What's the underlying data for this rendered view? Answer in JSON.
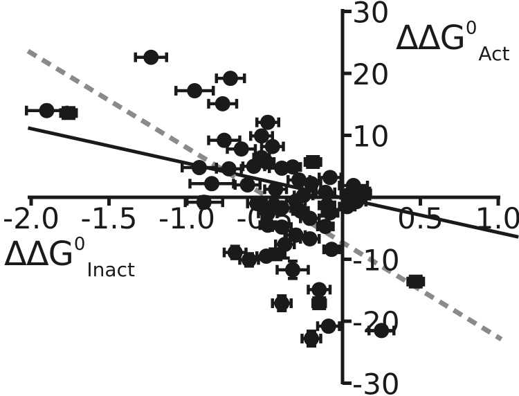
{
  "figure": {
    "background": "#ffffff",
    "ink_color": "#1a1a1a",
    "y_axis_title": {
      "main": "ΔΔG",
      "sup": "0",
      "sub": "Act"
    },
    "x_axis_title": {
      "main": "ΔΔG",
      "sup": "0",
      "sub": "Inact"
    }
  },
  "chart_data": {
    "type": "scatter",
    "title": "",
    "xlabel": "ΔΔG0 Inact",
    "ylabel": "ΔΔG0 Act",
    "xlim": [
      -2.0,
      1.0
    ],
    "ylim": [
      -30,
      30
    ],
    "grid": false,
    "legend": null,
    "marker_color": "#1a1a1a",
    "x_ticks": [
      {
        "v": -2.0,
        "label": "-2.0"
      },
      {
        "v": -1.5,
        "label": "-1.5"
      },
      {
        "v": -1.0,
        "label": "-1.0"
      },
      {
        "v": -0.5,
        "label": "-0.5"
      },
      {
        "v": 0.5,
        "label": "0.5"
      },
      {
        "v": 1.0,
        "label": "1.0"
      }
    ],
    "y_ticks": [
      {
        "v": 30,
        "label": "30"
      },
      {
        "v": 20,
        "label": "20"
      },
      {
        "v": 10,
        "label": "10"
      },
      {
        "v": -10,
        "label": "-10"
      },
      {
        "v": -20,
        "label": "-20"
      },
      {
        "v": -30,
        "label": "-30"
      }
    ],
    "fit_lines": [
      {
        "name": "solid-regression-line",
        "style": "solid",
        "color": "#1a1a1a",
        "x1": -2.02,
        "y1": 11.2,
        "x2": 1.13,
        "y2": -6.4
      },
      {
        "name": "dashed-regression-line",
        "style": "dashed",
        "color": "#8a8a8a",
        "x1": -2.02,
        "y1": 23.6,
        "x2": 1.02,
        "y2": -22.9
      }
    ],
    "points": [
      {
        "x": -1.23,
        "y": 22.6,
        "ex": 0.1,
        "ey": 0
      },
      {
        "x": -1.9,
        "y": 14.0,
        "ex": 0.13,
        "ey": 0
      },
      {
        "x": -1.76,
        "y": 13.6,
        "ex": 0.05,
        "ey": 0,
        "shape": "s"
      },
      {
        "x": -0.95,
        "y": 17.2,
        "ex": 0.12,
        "ey": 0
      },
      {
        "x": -0.72,
        "y": 19.2,
        "ex": 0.09,
        "ey": 0
      },
      {
        "x": -0.77,
        "y": 15.1,
        "ex": 0.09,
        "ey": 0
      },
      {
        "x": -0.48,
        "y": 12.1,
        "ex": 0.07,
        "ey": 0
      },
      {
        "x": -0.52,
        "y": 9.9,
        "ex": 0.07,
        "ey": 0
      },
      {
        "x": -0.45,
        "y": 8.2,
        "ex": 0.07,
        "ey": 0
      },
      {
        "x": -0.76,
        "y": 9.2,
        "ex": 0.1,
        "ey": 0
      },
      {
        "x": -0.65,
        "y": 7.8,
        "ex": 0.09,
        "ey": 0
      },
      {
        "x": -0.52,
        "y": 6.4,
        "ex": 0.05,
        "ey": 0
      },
      {
        "x": -0.92,
        "y": 4.8,
        "ex": 0.11,
        "ey": 0
      },
      {
        "x": -0.73,
        "y": 4.6,
        "ex": 0.08,
        "ey": 0
      },
      {
        "x": -0.57,
        "y": 5.0,
        "ex": 0.07,
        "ey": 0
      },
      {
        "x": -0.49,
        "y": 5.7,
        "ex": 0.05,
        "ey": 0
      },
      {
        "x": -0.39,
        "y": 4.7,
        "ex": 0.08,
        "ey": 0
      },
      {
        "x": -0.32,
        "y": 4.9,
        "ex": 0.05,
        "ey": 0
      },
      {
        "x": -0.19,
        "y": 5.7,
        "ex": 0.05,
        "ey": 0.6,
        "shape": "s"
      },
      {
        "x": -0.84,
        "y": 2.2,
        "ex": 0.14,
        "ey": 0
      },
      {
        "x": -0.61,
        "y": 2.0,
        "ex": 0.08,
        "ey": 0
      },
      {
        "x": -0.43,
        "y": 1.3,
        "ex": 0.07,
        "ey": 0
      },
      {
        "x": -0.28,
        "y": 2.8,
        "ex": 0.07,
        "ey": 0
      },
      {
        "x": -0.2,
        "y": 2.2,
        "ex": 0.06,
        "ey": 0
      },
      {
        "x": -0.08,
        "y": 3.2,
        "ex": 0.07,
        "ey": 0
      },
      {
        "x": 0.07,
        "y": 1.9,
        "ex": 0.09,
        "ey": 0
      },
      {
        "x": -0.11,
        "y": 0.8,
        "ex": 0.06,
        "ey": 0
      },
      {
        "x": -0.25,
        "y": 0.3,
        "ex": 0.06,
        "ey": 0
      },
      {
        "x": 0.04,
        "y": 0.4,
        "ex": 0.05,
        "ey": 0
      },
      {
        "x": 0.14,
        "y": 0.6,
        "ex": 0.04,
        "ey": 0.5,
        "shape": "s"
      },
      {
        "x": -0.89,
        "y": -0.8,
        "ex": 0.12,
        "ey": 0.9
      },
      {
        "x": -0.55,
        "y": -1.0,
        "ex": 0.06,
        "ey": 0
      },
      {
        "x": -0.44,
        "y": -1.3,
        "ex": 0.06,
        "ey": 0
      },
      {
        "x": -0.3,
        "y": -0.6,
        "ex": 0.06,
        "ey": 0
      },
      {
        "x": -0.48,
        "y": -2.6,
        "ex": 0.06,
        "ey": 0
      },
      {
        "x": -0.39,
        "y": -1.7,
        "ex": 0.06,
        "ey": 0
      },
      {
        "x": -0.1,
        "y": -1.3,
        "ex": 0.05,
        "ey": 0
      },
      {
        "x": 0.03,
        "y": -1.5,
        "ex": 0.05,
        "ey": 0
      },
      {
        "x": 0.09,
        "y": -0.7,
        "ex": 0.06,
        "ey": 0
      },
      {
        "x": -0.27,
        "y": -2.2,
        "ex": 0.05,
        "ey": 0
      },
      {
        "x": -0.08,
        "y": -2.5,
        "ex": 0.05,
        "ey": 0
      },
      {
        "x": -0.21,
        "y": -3.4,
        "ex": 0.06,
        "ey": 0
      },
      {
        "x": -0.48,
        "y": -4.5,
        "ex": 0.05,
        "ey": 0.7
      },
      {
        "x": -0.39,
        "y": -4.8,
        "ex": 0.06,
        "ey": 0
      },
      {
        "x": -0.11,
        "y": -4.7,
        "ex": 0.05,
        "ey": 0
      },
      {
        "x": -0.3,
        "y": -6.1,
        "ex": 0.06,
        "ey": 0.8
      },
      {
        "x": -0.21,
        "y": -6.7,
        "ex": 0.06,
        "ey": 0
      },
      {
        "x": -0.37,
        "y": -7.6,
        "ex": 0.06,
        "ey": 2.2
      },
      {
        "x": -0.07,
        "y": -8.4,
        "ex": 0.05,
        "ey": 0
      },
      {
        "x": -0.69,
        "y": -8.9,
        "ex": 0.07,
        "ey": 1.0
      },
      {
        "x": -0.6,
        "y": -10.1,
        "ex": 0.06,
        "ey": 1.0
      },
      {
        "x": -0.49,
        "y": -9.5,
        "ex": 0.06,
        "ey": 0
      },
      {
        "x": -0.43,
        "y": -9.2,
        "ex": 0.04,
        "ey": 0,
        "shape": "s"
      },
      {
        "x": -0.32,
        "y": -11.7,
        "ex": 0.1,
        "ey": 1.4
      },
      {
        "x": -0.15,
        "y": -14.9,
        "ex": 0.07,
        "ey": 0
      },
      {
        "x": -0.15,
        "y": -17.1,
        "ex": 0.04,
        "ey": 0,
        "shape": "s"
      },
      {
        "x": -0.39,
        "y": -17.1,
        "ex": 0.06,
        "ey": 1.2
      },
      {
        "x": -0.09,
        "y": -20.8,
        "ex": 0.07,
        "ey": 0
      },
      {
        "x": -0.2,
        "y": -22.8,
        "ex": 0.06,
        "ey": 1.2
      },
      {
        "x": 0.47,
        "y": -13.6,
        "ex": 0.05,
        "ey": 0.5,
        "shape": "s"
      },
      {
        "x": 0.25,
        "y": -21.5,
        "ex": 0.08,
        "ey": 0
      }
    ]
  }
}
